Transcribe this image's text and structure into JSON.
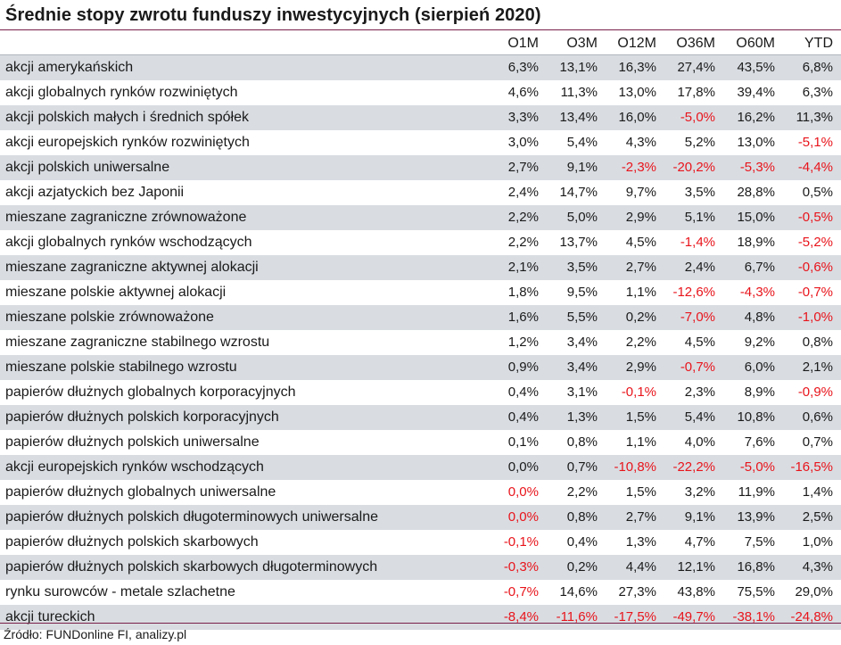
{
  "title": "Średnie stopy zwrotu funduszy inwestycyjnych (sierpień 2020)",
  "source": "Źródło: FUNDonline FI, analizy.pl",
  "colors": {
    "negative": "#e8141b",
    "shade": "#d9dde2",
    "accent_rule": "#7a1f4a"
  },
  "chart_data": {
    "type": "table",
    "title": "Średnie stopy zwrotu funduszy inwestycyjnych (sierpień 2020)",
    "columns": [
      "O1M",
      "O3M",
      "O12M",
      "O36M",
      "O60M",
      "YTD"
    ],
    "rows": [
      {
        "label": "akcji amerykańskich",
        "values": [
          "6,3%",
          "13,1%",
          "16,3%",
          "27,4%",
          "43,5%",
          "6,8%"
        ]
      },
      {
        "label": "akcji globalnych rynków rozwiniętych",
        "values": [
          "4,6%",
          "11,3%",
          "13,0%",
          "17,8%",
          "39,4%",
          "6,3%"
        ]
      },
      {
        "label": "akcji polskich małych i średnich spółek",
        "values": [
          "3,3%",
          "13,4%",
          "16,0%",
          "-5,0%",
          "16,2%",
          "11,3%"
        ]
      },
      {
        "label": "akcji europejskich rynków rozwiniętych",
        "values": [
          "3,0%",
          "5,4%",
          "4,3%",
          "5,2%",
          "13,0%",
          "-5,1%"
        ]
      },
      {
        "label": "akcji polskich uniwersalne",
        "values": [
          "2,7%",
          "9,1%",
          "-2,3%",
          "-20,2%",
          "-5,3%",
          "-4,4%"
        ]
      },
      {
        "label": "akcji azjatyckich bez Japonii",
        "values": [
          "2,4%",
          "14,7%",
          "9,7%",
          "3,5%",
          "28,8%",
          "0,5%"
        ]
      },
      {
        "label": "mieszane zagraniczne zrównoważone",
        "values": [
          "2,2%",
          "5,0%",
          "2,9%",
          "5,1%",
          "15,0%",
          "-0,5%"
        ]
      },
      {
        "label": "akcji globalnych rynków wschodzących",
        "values": [
          "2,2%",
          "13,7%",
          "4,5%",
          "-1,4%",
          "18,9%",
          "-5,2%"
        ]
      },
      {
        "label": "mieszane zagraniczne aktywnej alokacji",
        "values": [
          "2,1%",
          "3,5%",
          "2,7%",
          "2,4%",
          "6,7%",
          "-0,6%"
        ]
      },
      {
        "label": "mieszane polskie aktywnej alokacji",
        "values": [
          "1,8%",
          "9,5%",
          "1,1%",
          "-12,6%",
          "-4,3%",
          "-0,7%"
        ]
      },
      {
        "label": "mieszane polskie zrównoważone",
        "values": [
          "1,6%",
          "5,5%",
          "0,2%",
          "-7,0%",
          "4,8%",
          "-1,0%"
        ]
      },
      {
        "label": "mieszane zagraniczne stabilnego wzrostu",
        "values": [
          "1,2%",
          "3,4%",
          "2,2%",
          "4,5%",
          "9,2%",
          "0,8%"
        ]
      },
      {
        "label": "mieszane polskie stabilnego wzrostu",
        "values": [
          "0,9%",
          "3,4%",
          "2,9%",
          "-0,7%",
          "6,0%",
          "2,1%"
        ]
      },
      {
        "label": "papierów dłużnych globalnych korporacyjnych",
        "values": [
          "0,4%",
          "3,1%",
          "-0,1%",
          "2,3%",
          "8,9%",
          "-0,9%"
        ]
      },
      {
        "label": "papierów dłużnych polskich korporacyjnych",
        "values": [
          "0,4%",
          "1,3%",
          "1,5%",
          "5,4%",
          "10,8%",
          "0,6%"
        ]
      },
      {
        "label": "papierów dłużnych polskich uniwersalne",
        "values": [
          "0,1%",
          "0,8%",
          "1,1%",
          "4,0%",
          "7,6%",
          "0,7%"
        ]
      },
      {
        "label": "akcji europejskich rynków wschodzących",
        "values": [
          "0,0%",
          "0,7%",
          "-10,8%",
          "-22,2%",
          "-5,0%",
          "-16,5%"
        ]
      },
      {
        "label": "papierów dłużnych globalnych uniwersalne",
        "values": [
          "0,0%",
          "2,2%",
          "1,5%",
          "3,2%",
          "11,9%",
          "1,4%"
        ]
      },
      {
        "label": "papierów dłużnych polskich długoterminowych uniwersalne",
        "values": [
          "0,0%",
          "0,8%",
          "2,7%",
          "9,1%",
          "13,9%",
          "2,5%"
        ]
      },
      {
        "label": "papierów dłużnych polskich skarbowych",
        "values": [
          "-0,1%",
          "0,4%",
          "1,3%",
          "4,7%",
          "7,5%",
          "1,0%"
        ]
      },
      {
        "label": "papierów dłużnych polskich skarbowych długoterminowych",
        "values": [
          "-0,3%",
          "0,2%",
          "4,4%",
          "12,1%",
          "16,8%",
          "4,3%"
        ]
      },
      {
        "label": "rynku surowców - metale szlachetne",
        "values": [
          "-0,7%",
          "14,6%",
          "27,3%",
          "43,8%",
          "75,5%",
          "29,0%"
        ]
      },
      {
        "label": "akcji tureckich",
        "values": [
          "-8,4%",
          "-11,6%",
          "-17,5%",
          "-49,7%",
          "-38,1%",
          "-24,8%"
        ]
      }
    ],
    "negative_red_cells": [
      [
        2,
        3
      ],
      [
        3,
        5
      ],
      [
        4,
        2
      ],
      [
        4,
        3
      ],
      [
        4,
        4
      ],
      [
        4,
        5
      ],
      [
        6,
        5
      ],
      [
        7,
        3
      ],
      [
        7,
        5
      ],
      [
        8,
        5
      ],
      [
        9,
        3
      ],
      [
        9,
        4
      ],
      [
        9,
        5
      ],
      [
        10,
        3
      ],
      [
        10,
        5
      ],
      [
        12,
        3
      ],
      [
        13,
        2
      ],
      [
        13,
        5
      ],
      [
        16,
        2
      ],
      [
        16,
        3
      ],
      [
        16,
        4
      ],
      [
        16,
        5
      ],
      [
        17,
        0
      ],
      [
        18,
        0
      ],
      [
        19,
        0
      ],
      [
        20,
        0
      ],
      [
        21,
        0
      ],
      [
        22,
        0
      ],
      [
        22,
        1
      ],
      [
        22,
        2
      ],
      [
        22,
        3
      ],
      [
        22,
        4
      ],
      [
        22,
        5
      ]
    ]
  }
}
